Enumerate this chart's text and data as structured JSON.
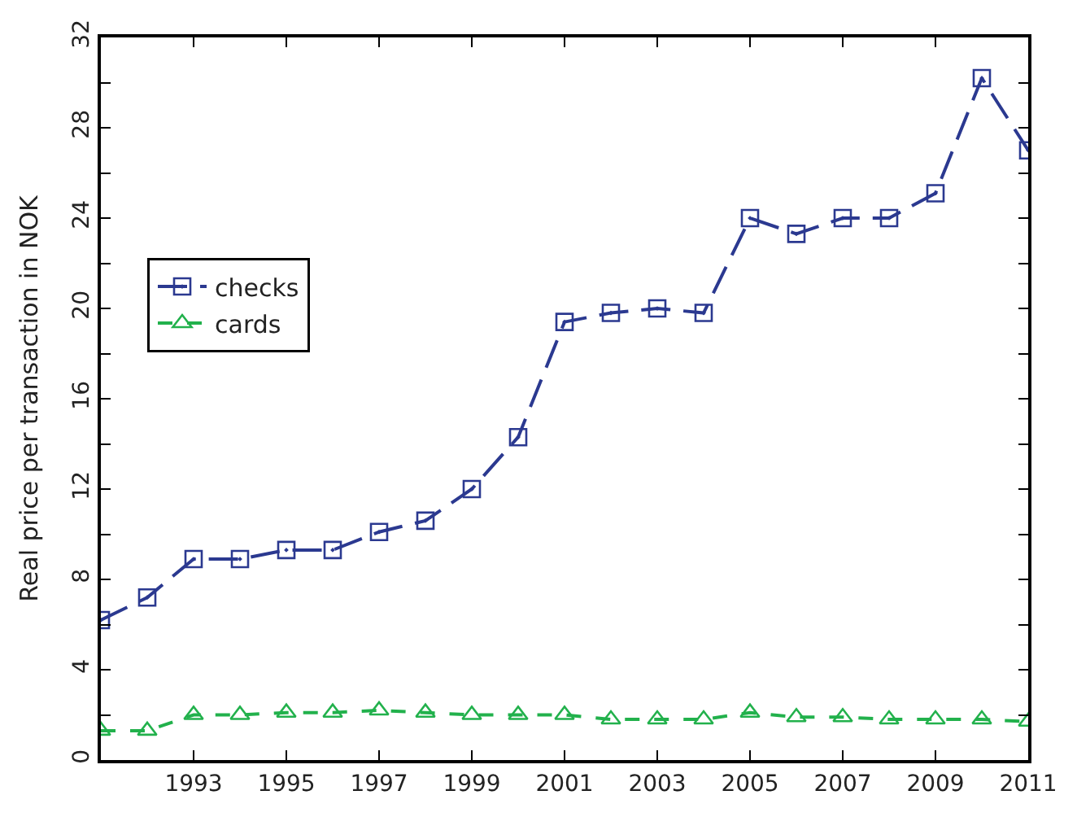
{
  "chart_data": {
    "type": "line",
    "ylabel": "Real price per transaction in NOK",
    "x": [
      1991,
      1992,
      1993,
      1994,
      1995,
      1996,
      1997,
      1998,
      1999,
      2000,
      2001,
      2002,
      2003,
      2004,
      2005,
      2006,
      2007,
      2008,
      2009,
      2010,
      2011
    ],
    "series": [
      {
        "name": "checks",
        "color": "#2b3990",
        "marker": "square",
        "line_style": "dashed",
        "values": [
          6.2,
          7.2,
          8.9,
          8.9,
          9.3,
          9.3,
          10.1,
          10.6,
          12.0,
          14.3,
          19.4,
          19.8,
          20.0,
          19.8,
          24.0,
          23.3,
          24.0,
          24.0,
          25.1,
          30.2,
          27.0
        ]
      },
      {
        "name": "cards",
        "color": "#22b14c",
        "marker": "triangle",
        "line_style": "dashed",
        "values": [
          1.3,
          1.3,
          2.0,
          2.0,
          2.1,
          2.1,
          2.2,
          2.1,
          2.0,
          2.0,
          2.0,
          1.8,
          1.8,
          1.8,
          2.1,
          1.9,
          1.9,
          1.8,
          1.8,
          1.8,
          1.7
        ]
      }
    ],
    "xlim": [
      1991,
      2011
    ],
    "xticks": [
      1993,
      1995,
      1997,
      1999,
      2001,
      2003,
      2005,
      2007,
      2009,
      2011
    ],
    "ylim": [
      0,
      32
    ],
    "yticks": [
      0,
      {
        "value": 2,
        "label": null
      },
      4,
      {
        "value": 6,
        "label": null
      },
      8,
      {
        "value": 10,
        "label": null
      },
      12,
      {
        "value": 14,
        "label": null
      },
      16,
      {
        "value": 18,
        "label": null
      },
      20,
      {
        "value": 22,
        "label": null
      },
      24,
      {
        "value": 26,
        "label": null
      },
      28,
      {
        "value": 30,
        "label": null
      },
      32
    ],
    "legend": "left"
  }
}
